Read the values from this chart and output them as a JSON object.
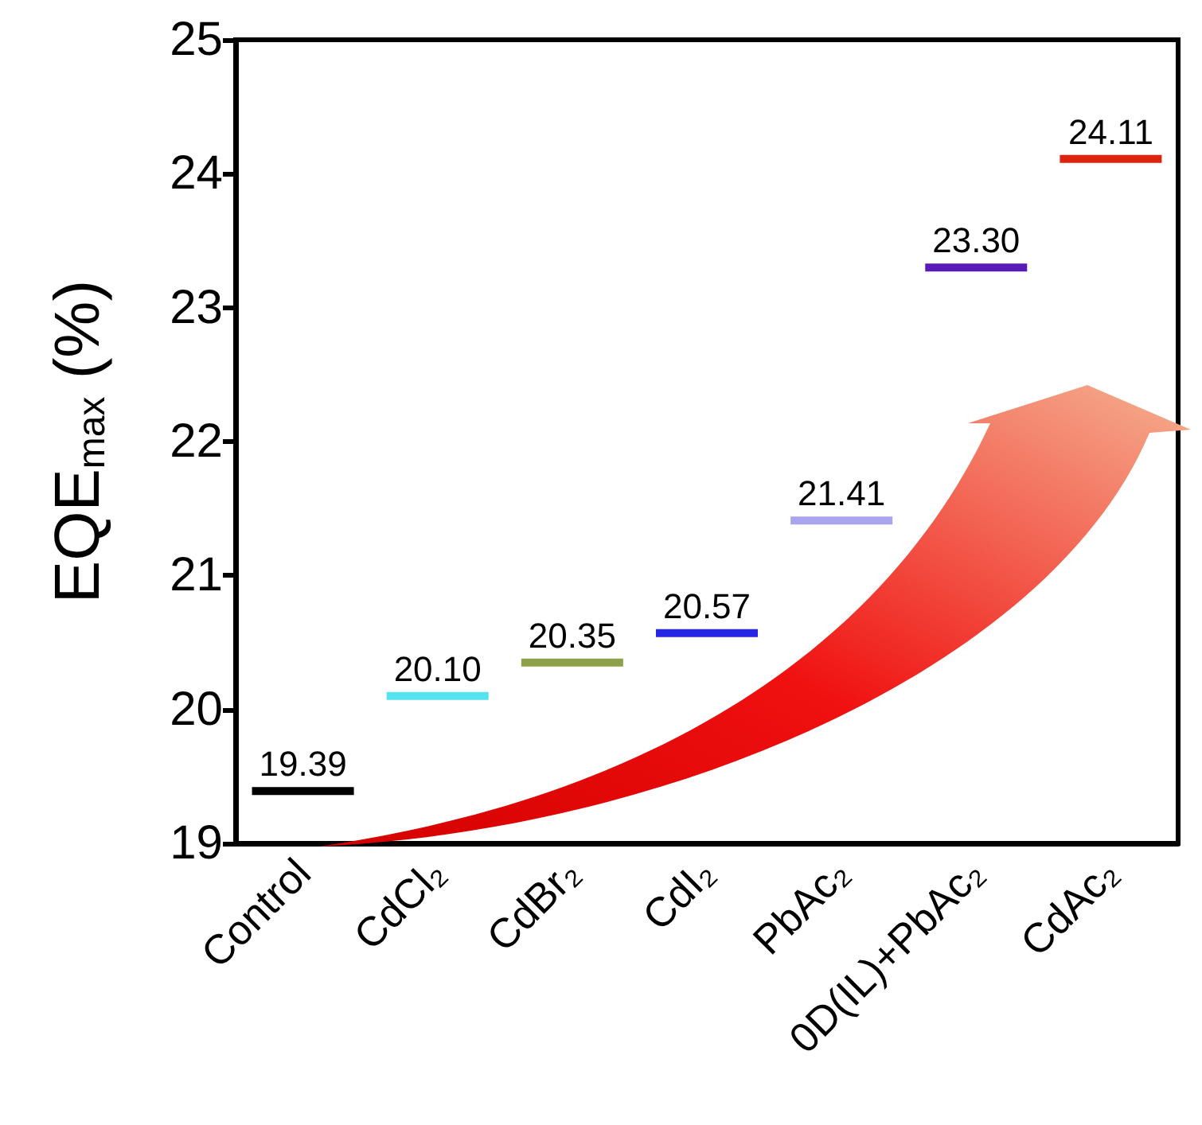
{
  "chart_data": {
    "type": "box",
    "ylabel": "EQE$_{max}$ (%)",
    "categories": [
      "Control",
      "CdCl₂",
      "CdBr₂",
      "CdI₂",
      "PbAc₂",
      "0D(IL)+PbAc₂",
      "CdAc₂"
    ],
    "boxes": [
      {
        "low": 19.39,
        "q1": 19.39,
        "median": 19.39,
        "q3": 19.39,
        "high": 19.39
      },
      {
        "low": 20.1,
        "q1": 20.1,
        "median": 20.1,
        "q3": 20.1,
        "high": 20.1
      },
      {
        "low": 20.35,
        "q1": 20.35,
        "median": 20.35,
        "q3": 20.35,
        "high": 20.35
      },
      {
        "low": 20.57,
        "q1": 20.57,
        "median": 20.57,
        "q3": 20.57,
        "high": 20.57
      },
      {
        "low": 21.41,
        "q1": 21.41,
        "median": 21.41,
        "q3": 21.41,
        "high": 21.41
      },
      {
        "low": 23.3,
        "q1": 23.3,
        "median": 23.3,
        "q3": 23.3,
        "high": 23.3
      },
      {
        "low": 24.11,
        "q1": 24.11,
        "median": 24.11,
        "q3": 24.11,
        "high": 24.11
      }
    ],
    "value_labels": [
      "19.39",
      "20.10",
      "20.35",
      "20.57",
      "21.41",
      "23.30",
      "24.11"
    ],
    "colors": [
      "#000000",
      "#55e3f0",
      "#8fa04a",
      "#2626e6",
      "#a8a4ee",
      "#5a1ab8",
      "#e0230e"
    ],
    "ylim": [
      19,
      25
    ],
    "yticks": [
      19,
      20,
      21,
      22,
      23,
      24,
      25
    ],
    "grid": false
  }
}
